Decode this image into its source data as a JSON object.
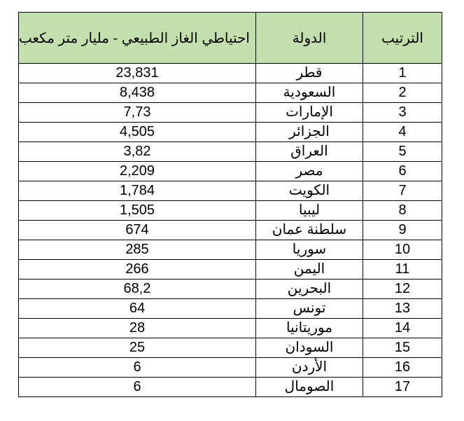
{
  "header_color": "#c3dfab",
  "columns": {
    "rank": "الترتيب",
    "country": "الدولة",
    "reserve": "احتياطي الغاز الطبيعي - مليار متر مكعب"
  },
  "rows": [
    {
      "rank": "1",
      "country": "قطر",
      "reserve": "23,831"
    },
    {
      "rank": "2",
      "country": "السعودية",
      "reserve": "8,438"
    },
    {
      "rank": "3",
      "country": "الإمارات",
      "reserve": "7,73"
    },
    {
      "rank": "4",
      "country": "الجزائر",
      "reserve": "4,505"
    },
    {
      "rank": "5",
      "country": "العراق",
      "reserve": "3,82"
    },
    {
      "rank": "6",
      "country": "مصر",
      "reserve": "2,209"
    },
    {
      "rank": "7",
      "country": "الكويت",
      "reserve": "1,784"
    },
    {
      "rank": "8",
      "country": "ليبيا",
      "reserve": "1,505"
    },
    {
      "rank": "9",
      "country": "سلطنة عمان",
      "reserve": "674"
    },
    {
      "rank": "10",
      "country": "سوريا",
      "reserve": "285"
    },
    {
      "rank": "11",
      "country": "اليمن",
      "reserve": "266"
    },
    {
      "rank": "12",
      "country": "البحرين",
      "reserve": "68,2"
    },
    {
      "rank": "13",
      "country": "تونس",
      "reserve": "64"
    },
    {
      "rank": "14",
      "country": "موريتانيا",
      "reserve": "28"
    },
    {
      "rank": "15",
      "country": "السودان",
      "reserve": "25"
    },
    {
      "rank": "16",
      "country": "الأردن",
      "reserve": "6"
    },
    {
      "rank": "17",
      "country": "الصومال",
      "reserve": "6"
    }
  ]
}
